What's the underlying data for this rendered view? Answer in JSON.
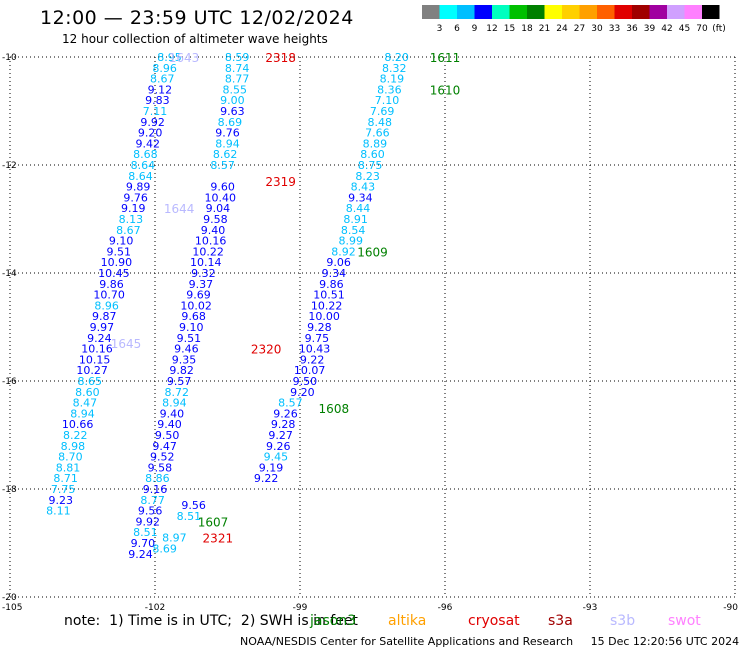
{
  "header": {
    "title": "12:00 — 23:59 UTC 12/02/2024",
    "subtitle": "12 hour collection of altimeter wave heights"
  },
  "colorbar": {
    "labels": [
      "3",
      "6",
      "9",
      "12",
      "15",
      "18",
      "21",
      "24",
      "27",
      "30",
      "33",
      "36",
      "39",
      "42",
      "45",
      "70"
    ],
    "unit": "(ft)",
    "colors": [
      "#808080",
      "#00ffff",
      "#00bfff",
      "#0000ff",
      "#00ffbf",
      "#00c000",
      "#008000",
      "#ffff00",
      "#ffd000",
      "#ffa000",
      "#ff6000",
      "#e00000",
      "#a00000",
      "#a000a0",
      "#d0a0ff",
      "#ff80ff",
      "#000000"
    ]
  },
  "axes": {
    "lat_labels": [
      "-10",
      "-12",
      "-14",
      "-16",
      "-18",
      "-20"
    ],
    "lon_labels": [
      "-105",
      "-102",
      "-99",
      "-96",
      "-93",
      "-90"
    ]
  },
  "map_data": {
    "lat_range": [
      -20,
      -10
    ],
    "lon_range": [
      -105,
      -90
    ],
    "tracks": [
      {
        "name": "1643",
        "label_color": "#b9b9ff",
        "label_pos": [
          -101.4,
          -10.0
        ],
        "points": [
          [
            "8.95",
            -101.7,
            -10.0,
            "#00bfff"
          ],
          [
            "8.96",
            -101.8,
            -10.2,
            "#00bfff"
          ],
          [
            "8.67",
            -101.85,
            -10.4,
            "#00bfff"
          ],
          [
            "9.12",
            -101.9,
            -10.6,
            "#0000ff"
          ],
          [
            "9.83",
            -101.95,
            -10.8,
            "#0000ff"
          ],
          [
            "7.11",
            -102.0,
            -11.0,
            "#00bfff"
          ],
          [
            "9.92",
            -102.05,
            -11.2,
            "#0000ff"
          ],
          [
            "9.20",
            -102.1,
            -11.4,
            "#0000ff"
          ],
          [
            "9.42",
            -102.15,
            -11.6,
            "#0000ff"
          ],
          [
            "8.68",
            -102.2,
            -11.8,
            "#00bfff"
          ],
          [
            "8.64",
            -102.25,
            -12.0,
            "#00bfff"
          ],
          [
            "8.64",
            -102.3,
            -12.2,
            "#00bfff"
          ],
          [
            "9.89",
            -102.35,
            -12.4,
            "#0000ff"
          ],
          [
            "9.76",
            -102.4,
            -12.6,
            "#0000ff"
          ],
          [
            "9.19",
            -102.45,
            -12.8,
            "#0000ff"
          ],
          [
            "8.13",
            -102.5,
            -13.0,
            "#00bfff"
          ],
          [
            "8.67",
            -102.55,
            -13.2,
            "#00bfff"
          ]
        ]
      },
      {
        "name": "1644",
        "label_color": "#b9b9ff",
        "label_pos": [
          -101.5,
          -12.8
        ],
        "points": [
          [
            "9.10",
            -102.7,
            -13.4,
            "#0000ff"
          ],
          [
            "9.51",
            -102.75,
            -13.6,
            "#0000ff"
          ],
          [
            "10.90",
            -102.8,
            -13.8,
            "#0000ff"
          ],
          [
            "10.45",
            -102.85,
            -14.0,
            "#0000ff"
          ],
          [
            "9.86",
            -102.9,
            -14.2,
            "#0000ff"
          ],
          [
            "10.70",
            -102.95,
            -14.4,
            "#0000ff"
          ],
          [
            "8.96",
            -103.0,
            -14.6,
            "#00bfff"
          ],
          [
            "9.87",
            -103.05,
            -14.8,
            "#0000ff"
          ],
          [
            "9.97",
            -103.1,
            -15.0,
            "#0000ff"
          ],
          [
            "9.24",
            -103.15,
            -15.2,
            "#0000ff"
          ],
          [
            "10.16",
            -103.2,
            -15.4,
            "#0000ff"
          ],
          [
            "10.15",
            -103.25,
            -15.6,
            "#0000ff"
          ],
          [
            "10.27",
            -103.3,
            -15.8,
            "#0000ff"
          ],
          [
            "8.65",
            -103.35,
            -16.0,
            "#00bfff"
          ],
          [
            "8.60",
            -103.4,
            -16.2,
            "#00bfff"
          ],
          [
            "8.47",
            -103.45,
            -16.4,
            "#00bfff"
          ],
          [
            "8.94",
            -103.5,
            -16.6,
            "#00bfff"
          ]
        ]
      },
      {
        "name": "1645",
        "label_color": "#b9b9ff",
        "label_pos": [
          -102.6,
          -15.3
        ],
        "points": [
          [
            "10.66",
            -103.6,
            -16.8,
            "#0000ff"
          ],
          [
            "8.22",
            -103.65,
            -17.0,
            "#00bfff"
          ],
          [
            "8.98",
            -103.7,
            -17.2,
            "#00bfff"
          ],
          [
            "8.70",
            -103.75,
            -17.4,
            "#00bfff"
          ],
          [
            "8.81",
            -103.8,
            -17.6,
            "#00bfff"
          ],
          [
            "8.71",
            -103.85,
            -17.8,
            "#00bfff"
          ],
          [
            "7.75",
            -103.9,
            -18.0,
            "#00bfff"
          ],
          [
            "9.23",
            -103.95,
            -18.2,
            "#0000ff"
          ],
          [
            "8.11",
            -104.0,
            -18.4,
            "#00bfff"
          ]
        ]
      },
      {
        "name": "2318",
        "label_color": "#e00000",
        "label_pos": [
          -99.4,
          -10.0
        ],
        "points": [
          [
            "8.59",
            -100.3,
            -10.0,
            "#00bfff"
          ],
          [
            "8.74",
            -100.3,
            -10.2,
            "#00bfff"
          ],
          [
            "8.77",
            -100.3,
            -10.4,
            "#00bfff"
          ],
          [
            "8.55",
            -100.35,
            -10.6,
            "#00bfff"
          ],
          [
            "9.00",
            -100.4,
            -10.8,
            "#00bfff"
          ],
          [
            "9.63",
            -100.4,
            -11.0,
            "#0000ff"
          ],
          [
            "8.69",
            -100.45,
            -11.2,
            "#00bfff"
          ],
          [
            "9.76",
            -100.5,
            -11.4,
            "#0000ff"
          ],
          [
            "8.94",
            -100.5,
            -11.6,
            "#00bfff"
          ],
          [
            "8.62",
            -100.55,
            -11.8,
            "#00bfff"
          ],
          [
            "8.57",
            -100.6,
            -12.0,
            "#00bfff"
          ]
        ]
      },
      {
        "name": "2319",
        "label_color": "#e00000",
        "label_pos": [
          -99.4,
          -12.3
        ],
        "points": [
          [
            "9.60",
            -100.6,
            -12.4,
            "#0000ff"
          ],
          [
            "10.40",
            -100.65,
            -12.6,
            "#0000ff"
          ],
          [
            "9.04",
            -100.7,
            -12.8,
            "#0000ff"
          ],
          [
            "9.58",
            -100.75,
            -13.0,
            "#0000ff"
          ],
          [
            "9.40",
            -100.8,
            -13.2,
            "#0000ff"
          ],
          [
            "10.16",
            -100.85,
            -13.4,
            "#0000ff"
          ],
          [
            "10.22",
            -100.9,
            -13.6,
            "#0000ff"
          ],
          [
            "10.14",
            -100.95,
            -13.8,
            "#0000ff"
          ],
          [
            "9.32",
            -101.0,
            -14.0,
            "#0000ff"
          ],
          [
            "9.37",
            -101.05,
            -14.2,
            "#0000ff"
          ],
          [
            "9.69",
            -101.1,
            -14.4,
            "#0000ff"
          ],
          [
            "10.02",
            -101.15,
            -14.6,
            "#0000ff"
          ],
          [
            "9.68",
            -101.2,
            -14.8,
            "#0000ff"
          ],
          [
            "9.10",
            -101.25,
            -15.0,
            "#0000ff"
          ],
          [
            "9.51",
            -101.3,
            -15.2,
            "#0000ff"
          ],
          [
            "9.46",
            -101.35,
            -15.4,
            "#0000ff"
          ]
        ]
      },
      {
        "name": "2320",
        "label_color": "#e00000",
        "label_pos": [
          -99.7,
          -15.4
        ],
        "points": [
          [
            "9.35",
            -101.4,
            -15.6,
            "#0000ff"
          ],
          [
            "9.82",
            -101.45,
            -15.8,
            "#0000ff"
          ],
          [
            "9.57",
            -101.5,
            -16.0,
            "#0000ff"
          ],
          [
            "8.72",
            -101.55,
            -16.2,
            "#00bfff"
          ],
          [
            "8.94",
            -101.6,
            -16.4,
            "#00bfff"
          ],
          [
            "9.40",
            -101.65,
            -16.6,
            "#0000ff"
          ],
          [
            "9.40",
            -101.7,
            -16.8,
            "#0000ff"
          ],
          [
            "9.50",
            -101.75,
            -17.0,
            "#0000ff"
          ],
          [
            "9.47",
            -101.8,
            -17.2,
            "#0000ff"
          ],
          [
            "9.52",
            -101.85,
            -17.4,
            "#0000ff"
          ],
          [
            "9.58",
            -101.9,
            -17.6,
            "#0000ff"
          ],
          [
            "8.86",
            -101.95,
            -17.8,
            "#00bfff"
          ],
          [
            "9.16",
            -102.0,
            -18.0,
            "#0000ff"
          ],
          [
            "8.77",
            -102.05,
            -18.2,
            "#00bfff"
          ],
          [
            "9.56",
            -102.1,
            -18.4,
            "#0000ff"
          ],
          [
            "9.92",
            -102.15,
            -18.6,
            "#0000ff"
          ],
          [
            "8.51",
            -102.2,
            -18.8,
            "#00bfff"
          ],
          [
            "9.70",
            -102.25,
            -19.0,
            "#0000ff"
          ],
          [
            "9.24",
            -102.3,
            -19.2,
            "#0000ff"
          ]
        ]
      },
      {
        "name": "2321",
        "label_color": "#e00000",
        "label_pos": [
          -100.7,
          -18.9
        ],
        "points": [
          [
            "8.97",
            -101.6,
            -18.9,
            "#00bfff"
          ],
          [
            "8.69",
            -101.8,
            -19.1,
            "#00bfff"
          ]
        ]
      },
      {
        "name": "1611",
        "label_color": "#008000",
        "label_pos": [
          -96.0,
          -10.0
        ],
        "points": [
          [
            "8.20",
            -97.0,
            -10.0,
            "#00bfff"
          ],
          [
            "8.32",
            -97.05,
            -10.2,
            "#00bfff"
          ],
          [
            "8.19",
            -97.1,
            -10.4,
            "#00bfff"
          ],
          [
            "8.36",
            -97.15,
            -10.6,
            "#00bfff"
          ],
          [
            "7.10",
            -97.2,
            -10.8,
            "#00bfff"
          ],
          [
            "7.69",
            -97.3,
            -11.0,
            "#00bfff"
          ],
          [
            "8.48",
            -97.35,
            -11.2,
            "#00bfff"
          ],
          [
            "7.66",
            -97.4,
            -11.4,
            "#00bfff"
          ],
          [
            "8.89",
            -97.45,
            -11.6,
            "#00bfff"
          ],
          [
            "8.60",
            -97.5,
            -11.8,
            "#00bfff"
          ]
        ]
      },
      {
        "name": "1610",
        "label_color": "#008000",
        "label_pos": [
          -96.0,
          -10.6
        ],
        "points": [
          [
            "8.75",
            -97.55,
            -12.0,
            "#00bfff"
          ],
          [
            "8.23",
            -97.6,
            -12.2,
            "#00bfff"
          ],
          [
            "8.43",
            -97.7,
            -12.4,
            "#00bfff"
          ],
          [
            "9.34",
            -97.75,
            -12.6,
            "#0000ff"
          ],
          [
            "8.44",
            -97.8,
            -12.8,
            "#00bfff"
          ],
          [
            "8.91",
            -97.85,
            -13.0,
            "#00bfff"
          ],
          [
            "8.54",
            -97.9,
            -13.2,
            "#00bfff"
          ],
          [
            "8.99",
            -97.95,
            -13.4,
            "#00bfff"
          ]
        ]
      },
      {
        "name": "1609",
        "label_color": "#008000",
        "label_pos": [
          -97.5,
          -13.6
        ],
        "points": [
          [
            "8.92",
            -98.1,
            -13.6,
            "#00bfff"
          ],
          [
            "9.06",
            -98.2,
            -13.8,
            "#0000ff"
          ],
          [
            "9.34",
            -98.3,
            -14.0,
            "#0000ff"
          ],
          [
            "9.86",
            -98.35,
            -14.2,
            "#0000ff"
          ],
          [
            "10.51",
            -98.4,
            -14.4,
            "#0000ff"
          ],
          [
            "10.22",
            -98.45,
            -14.6,
            "#0000ff"
          ],
          [
            "10.00",
            -98.5,
            -14.8,
            "#0000ff"
          ],
          [
            "9.28",
            -98.6,
            -15.0,
            "#0000ff"
          ],
          [
            "9.75",
            -98.65,
            -15.2,
            "#0000ff"
          ],
          [
            "10.43",
            -98.7,
            -15.4,
            "#0000ff"
          ],
          [
            "9.22",
            -98.75,
            -15.6,
            "#0000ff"
          ],
          [
            "10.07",
            -98.8,
            -15.8,
            "#0000ff"
          ],
          [
            "9.50",
            -98.9,
            -16.0,
            "#0000ff"
          ],
          [
            "9.20",
            -98.95,
            -16.2,
            "#0000ff"
          ]
        ]
      },
      {
        "name": "1608",
        "label_color": "#008000",
        "label_pos": [
          -98.3,
          -16.5
        ],
        "points": [
          [
            "8.57",
            -99.2,
            -16.4,
            "#00bfff"
          ],
          [
            "9.26",
            -99.3,
            -16.6,
            "#0000ff"
          ],
          [
            "9.28",
            -99.35,
            -16.8,
            "#0000ff"
          ],
          [
            "9.27",
            -99.4,
            -17.0,
            "#0000ff"
          ],
          [
            "9.26",
            -99.45,
            -17.2,
            "#0000ff"
          ],
          [
            "9.45",
            -99.5,
            -17.4,
            "#00bfff"
          ],
          [
            "9.19",
            -99.6,
            -17.6,
            "#0000ff"
          ],
          [
            "9.22",
            -99.7,
            -17.8,
            "#0000ff"
          ]
        ]
      },
      {
        "name": "1607",
        "label_color": "#008000",
        "label_pos": [
          -100.8,
          -18.6
        ],
        "points": [
          [
            "9.56",
            -101.2,
            -18.3,
            "#0000ff"
          ],
          [
            "8.51",
            -101.3,
            -18.5,
            "#00bfff"
          ]
        ]
      }
    ]
  },
  "footer": {
    "note": "note:  1) Time is in UTC;  2) SWH is in feet",
    "credit": "NOAA/NESDIS Center for Satellite Applications and Research     15 Dec 12:20:56 UTC 2024",
    "missions": [
      {
        "label": "jason3",
        "color": "#008000"
      },
      {
        "label": "altika",
        "color": "#ffa000"
      },
      {
        "label": "cryosat",
        "color": "#e00000"
      },
      {
        "label": "s3a",
        "color": "#a00000"
      },
      {
        "label": "s3b",
        "color": "#b9b9ff"
      },
      {
        "label": "swot",
        "color": "#ff80ff"
      }
    ]
  }
}
